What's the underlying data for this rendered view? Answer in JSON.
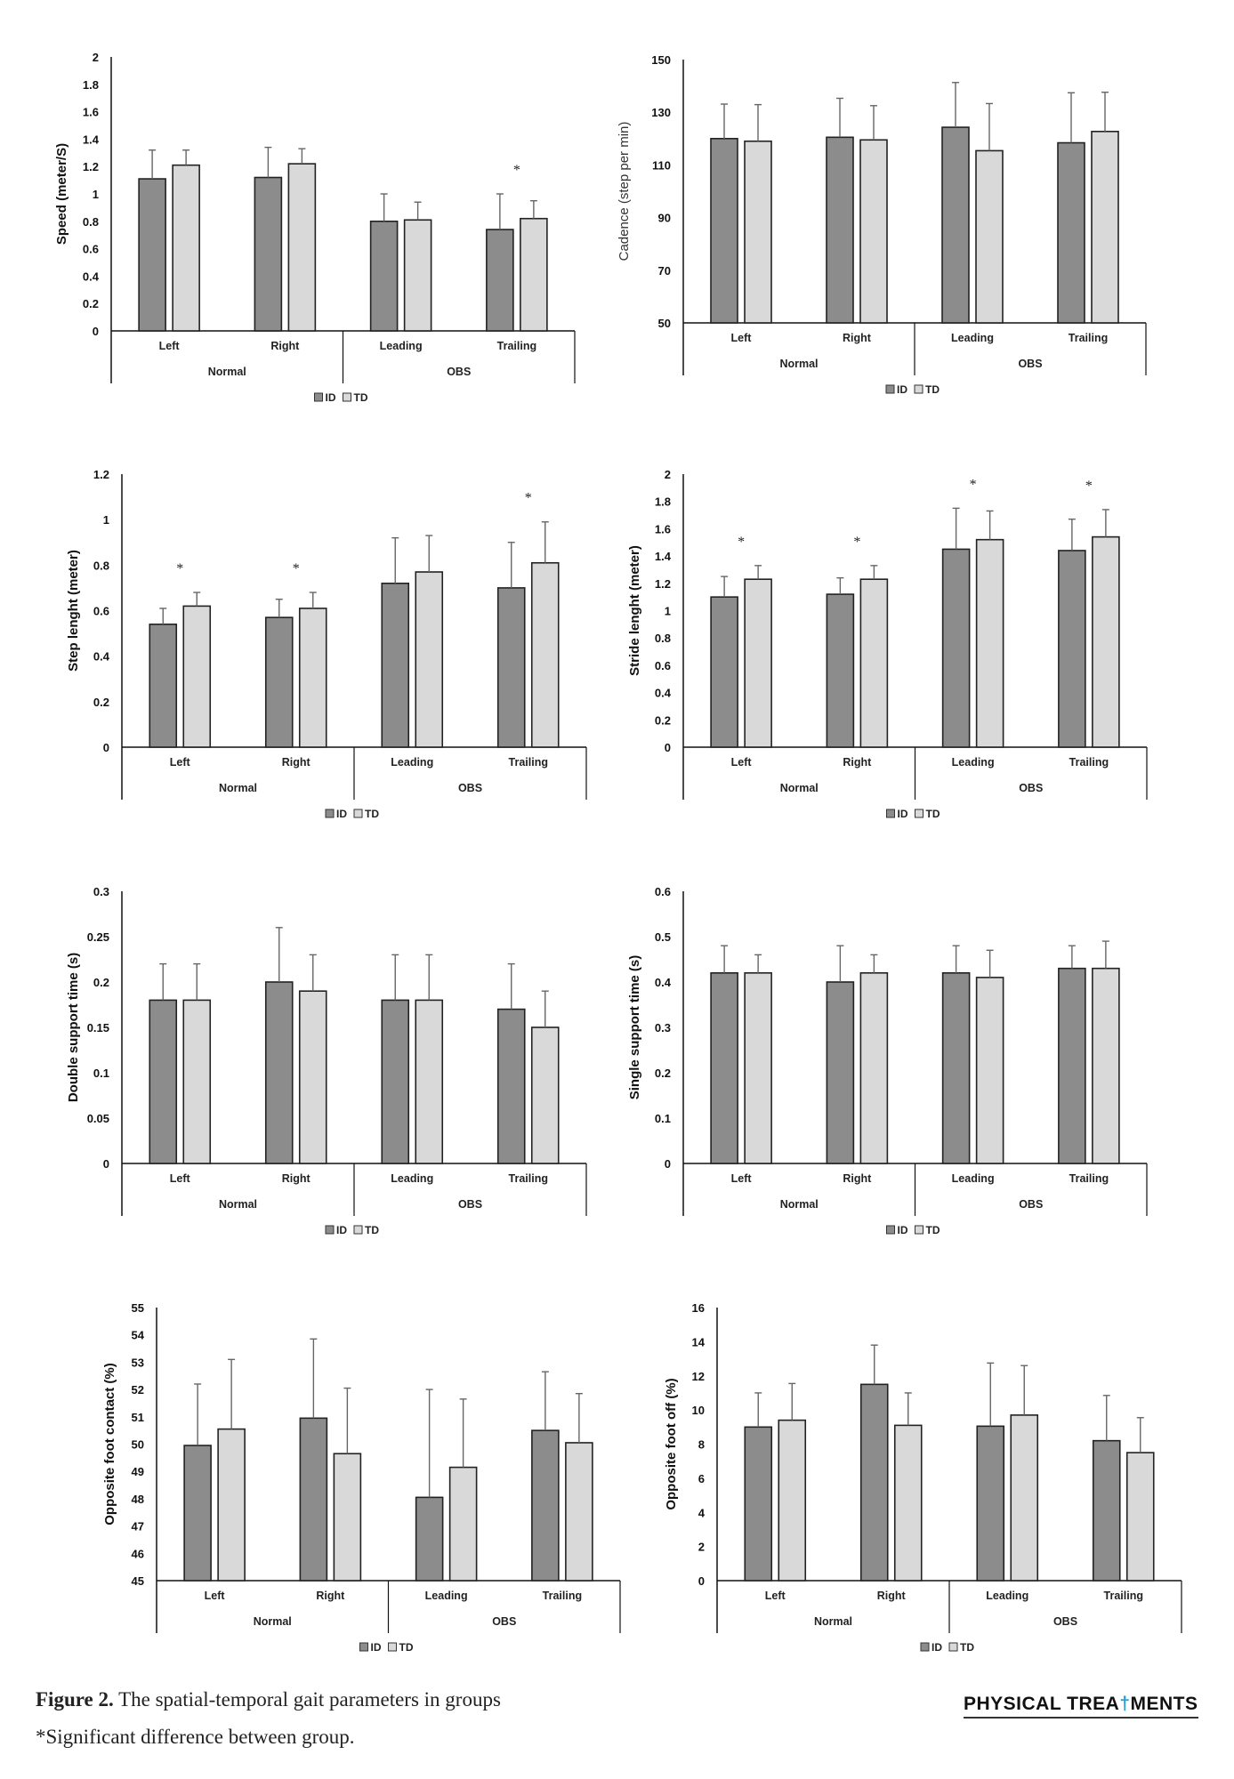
{
  "caption": {
    "figure_label": "Figure 2.",
    "title": "The spatial-temporal gait parameters in groups",
    "note": "*Significant difference between group."
  },
  "logo": {
    "part1": "PHYSICAL TREA",
    "cross": "†",
    "part2": "MENTS",
    "accent_color": "#2aa0d8"
  },
  "colors": {
    "ID": "#8c8c8c",
    "TD": "#d9d9d9",
    "border": "#222222",
    "error": "#666666"
  },
  "chart_data": [
    {
      "type": "bar",
      "ylabel": "Speed (meter/S)",
      "ylim": [
        0,
        2
      ],
      "yticks": [
        "0",
        "0.2",
        "0.4",
        "0.6",
        "0.8",
        "1",
        "1.2",
        "1.4",
        "1.6",
        "1.8",
        "2"
      ],
      "categories": [
        "Left",
        "Right",
        "Leading",
        "Trailing"
      ],
      "groups": [
        "Normal",
        "OBS"
      ],
      "legend": [
        "ID",
        "TD"
      ],
      "series": [
        {
          "name": "ID",
          "values": [
            1.11,
            1.12,
            0.8,
            0.74
          ],
          "error_top": [
            1.32,
            1.34,
            1.0,
            1.0
          ]
        },
        {
          "name": "TD",
          "values": [
            1.21,
            1.22,
            0.81,
            0.82
          ],
          "error_top": [
            1.32,
            1.33,
            0.94,
            0.95
          ]
        }
      ],
      "significant": [
        false,
        false,
        false,
        true
      ],
      "significant_mark": "*"
    },
    {
      "type": "bar",
      "ylabel": "Cadence (step per min)",
      "ylim": [
        50,
        150
      ],
      "yticks": [
        "50",
        "70",
        "90",
        "110",
        "130",
        "150"
      ],
      "categories": [
        "Left",
        "Right",
        "Leading",
        "Trailing"
      ],
      "groups": [
        "Normal",
        "OBS"
      ],
      "legend": [
        "ID",
        "TD"
      ],
      "series": [
        {
          "name": "ID",
          "values": [
            120,
            120.5,
            124.3,
            118.4
          ],
          "error_top": [
            133.1,
            135.3,
            141.3,
            137.4
          ]
        },
        {
          "name": "TD",
          "values": [
            119,
            119.5,
            115.4,
            122.7
          ],
          "error_top": [
            132.9,
            132.5,
            133.3,
            137.6
          ]
        }
      ],
      "significant": [
        false,
        false,
        false,
        false
      ],
      "significant_mark": "*"
    },
    {
      "type": "bar",
      "ylabel": "Step lenght (meter)",
      "ylim": [
        0,
        1.2
      ],
      "yticks": [
        "0",
        "0.2",
        "0.4",
        "0.6",
        "0.8",
        "1",
        "1.2"
      ],
      "categories": [
        "Left",
        "Right",
        "Leading",
        "Trailing"
      ],
      "groups": [
        "Normal",
        "OBS"
      ],
      "legend": [
        "ID",
        "TD"
      ],
      "series": [
        {
          "name": "ID",
          "values": [
            0.54,
            0.57,
            0.72,
            0.7
          ],
          "error_top": [
            0.61,
            0.65,
            0.92,
            0.9
          ]
        },
        {
          "name": "TD",
          "values": [
            0.62,
            0.61,
            0.77,
            0.81
          ],
          "error_top": [
            0.68,
            0.68,
            0.93,
            0.99
          ]
        }
      ],
      "significant": [
        true,
        true,
        false,
        true
      ],
      "significant_mark": "*"
    },
    {
      "type": "bar",
      "ylabel": "Stride lenght (meter)",
      "ylim": [
        0,
        2
      ],
      "yticks": [
        "0",
        "0.2",
        "0.4",
        "0.6",
        "0.8",
        "1",
        "1.2",
        "1.4",
        "1.6",
        "1.8",
        "2"
      ],
      "categories": [
        "Left",
        "Right",
        "Leading",
        "Trailing"
      ],
      "groups": [
        "Normal",
        "OBS"
      ],
      "legend": [
        "ID",
        "TD"
      ],
      "series": [
        {
          "name": "ID",
          "values": [
            1.1,
            1.12,
            1.45,
            1.44
          ],
          "error_top": [
            1.25,
            1.24,
            1.75,
            1.67
          ]
        },
        {
          "name": "TD",
          "values": [
            1.23,
            1.23,
            1.52,
            1.54
          ],
          "error_top": [
            1.33,
            1.33,
            1.73,
            1.74
          ]
        }
      ],
      "significant": [
        true,
        true,
        true,
        true
      ],
      "significant_mark": "*"
    },
    {
      "type": "bar",
      "ylabel": "Double support time (s)",
      "ylim": [
        0,
        0.3
      ],
      "yticks": [
        "0",
        "0.05",
        "0.1",
        "0.15",
        "0.2",
        "0.25",
        "0.3"
      ],
      "categories": [
        "Left",
        "Right",
        "Leading",
        "Trailing"
      ],
      "groups": [
        "Normal",
        "OBS"
      ],
      "legend": [
        "ID",
        "TD"
      ],
      "series": [
        {
          "name": "ID",
          "values": [
            0.18,
            0.2,
            0.18,
            0.17
          ],
          "error_top": [
            0.22,
            0.26,
            0.23,
            0.22
          ]
        },
        {
          "name": "TD",
          "values": [
            0.18,
            0.19,
            0.18,
            0.15
          ],
          "error_top": [
            0.22,
            0.23,
            0.23,
            0.19
          ]
        }
      ],
      "significant": [
        false,
        false,
        false,
        false
      ],
      "significant_mark": "*"
    },
    {
      "type": "bar",
      "ylabel": "Single support time (s)",
      "ylim": [
        0,
        0.6
      ],
      "yticks": [
        "0",
        "0.1",
        "0.2",
        "0.3",
        "0.4",
        "0.5",
        "0.6"
      ],
      "categories": [
        "Left",
        "Right",
        "Leading",
        "Trailing"
      ],
      "groups": [
        "Normal",
        "OBS"
      ],
      "legend": [
        "ID",
        "TD"
      ],
      "series": [
        {
          "name": "ID",
          "values": [
            0.42,
            0.4,
            0.42,
            0.43
          ],
          "error_top": [
            0.48,
            0.48,
            0.48,
            0.48
          ]
        },
        {
          "name": "TD",
          "values": [
            0.42,
            0.42,
            0.41,
            0.43
          ],
          "error_top": [
            0.46,
            0.46,
            0.47,
            0.49
          ]
        }
      ],
      "significant": [
        false,
        false,
        false,
        false
      ],
      "significant_mark": "*"
    },
    {
      "type": "bar",
      "ylabel": "Opposite foot contact (%)",
      "ylim": [
        45,
        55
      ],
      "yticks": [
        "45",
        "46",
        "47",
        "48",
        "49",
        "50",
        "51",
        "52",
        "53",
        "54",
        "55"
      ],
      "categories": [
        "Left",
        "Right",
        "Leading",
        "Trailing"
      ],
      "groups": [
        "Normal",
        "OBS"
      ],
      "legend": [
        "ID",
        "TD"
      ],
      "series": [
        {
          "name": "ID",
          "values": [
            49.95,
            50.95,
            48.05,
            50.5
          ],
          "error_top": [
            52.2,
            53.85,
            52.0,
            52.65
          ]
        },
        {
          "name": "TD",
          "values": [
            50.55,
            49.65,
            49.15,
            50.05
          ],
          "error_top": [
            53.1,
            52.05,
            51.65,
            51.85
          ]
        }
      ],
      "significant": [
        false,
        false,
        false,
        false
      ],
      "significant_mark": "*"
    },
    {
      "type": "bar",
      "ylabel": "Opposite foot off (%)",
      "ylim": [
        0,
        16
      ],
      "yticks": [
        "0",
        "2",
        "4",
        "6",
        "8",
        "10",
        "12",
        "14",
        "16"
      ],
      "categories": [
        "Left",
        "Right",
        "Leading",
        "Trailing"
      ],
      "groups": [
        "Normal",
        "OBS"
      ],
      "legend": [
        "ID",
        "TD"
      ],
      "series": [
        {
          "name": "ID",
          "values": [
            9.0,
            11.5,
            9.05,
            8.2
          ],
          "error_top": [
            11.0,
            13.8,
            12.75,
            10.85
          ]
        },
        {
          "name": "TD",
          "values": [
            9.4,
            9.1,
            9.7,
            7.5
          ],
          "error_top": [
            11.55,
            11.0,
            12.6,
            9.55
          ]
        }
      ],
      "significant": [
        false,
        false,
        false,
        false
      ],
      "significant_mark": "*"
    }
  ]
}
